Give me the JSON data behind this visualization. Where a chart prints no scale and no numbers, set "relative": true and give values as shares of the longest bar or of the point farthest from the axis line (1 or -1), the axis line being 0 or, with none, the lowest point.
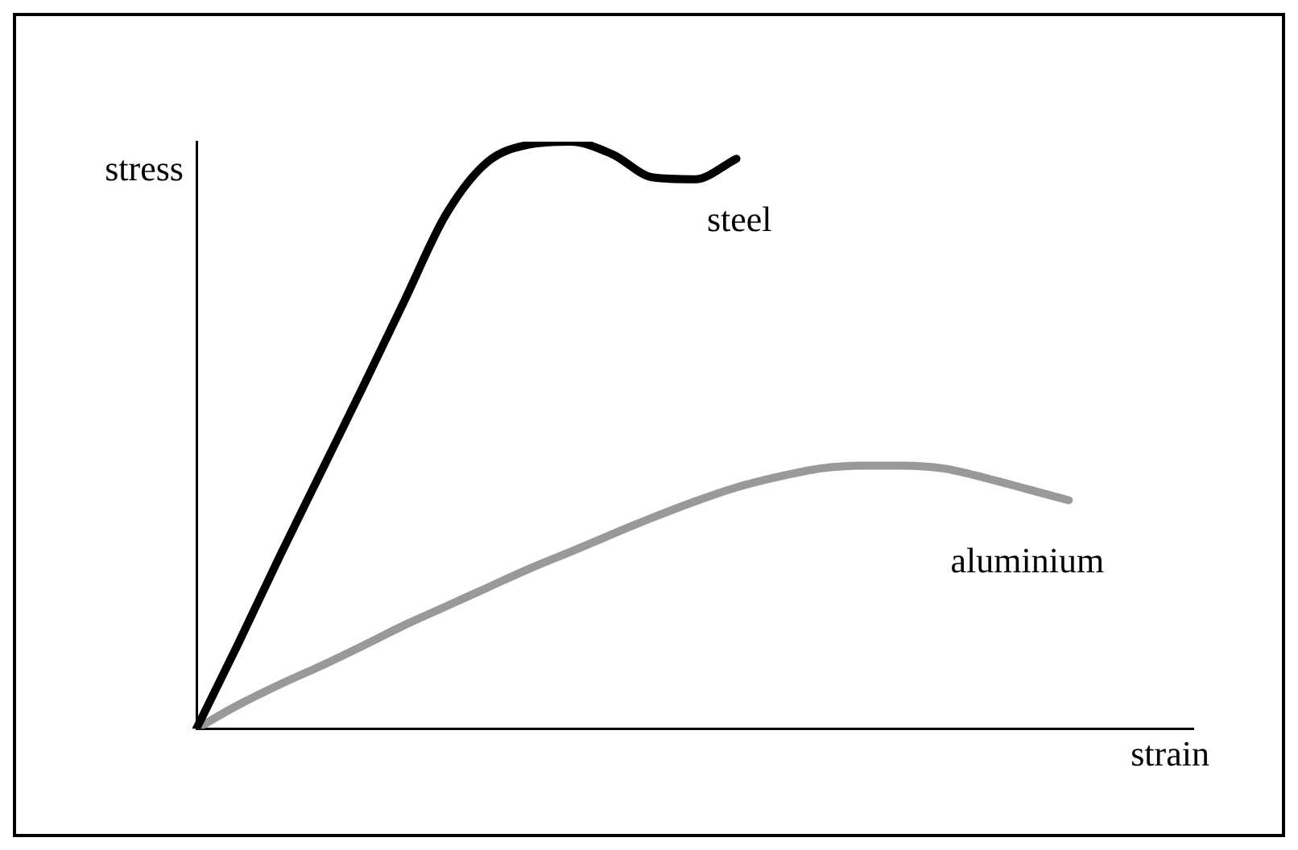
{
  "chart_data": {
    "type": "line",
    "relative": true,
    "xlabel": "strain",
    "ylabel": "stress",
    "grid": false,
    "legend": false,
    "marker": "none",
    "line_style": "solid",
    "categories": [
      null,
      null,
      null,
      null,
      null,
      null,
      null,
      null,
      null,
      null,
      null,
      null,
      null,
      null,
      null,
      null,
      null,
      null,
      null,
      null,
      null,
      null,
      null,
      null,
      null
    ],
    "series": [
      {
        "name": "steel",
        "color": "#000000",
        "values": [
          0,
          0.144,
          0.293,
          0.437,
          0.581,
          0.728,
          0.875,
          0.965,
          0.995,
          1.0,
          0.979,
          0.939,
          0.936,
          0.971,
          null,
          null,
          null,
          null,
          null,
          null,
          null,
          null,
          null,
          null,
          null
        ]
      },
      {
        "name": "aluminium",
        "color": "#999999",
        "values": [
          0,
          0.04,
          0.075,
          0.107,
          0.141,
          0.176,
          0.208,
          0.24,
          0.272,
          0.301,
          0.331,
          0.36,
          0.387,
          0.411,
          0.429,
          0.443,
          0.448,
          0.448,
          0.443,
          0.427,
          0.408,
          0.389,
          null,
          null,
          null
        ]
      }
    ]
  }
}
